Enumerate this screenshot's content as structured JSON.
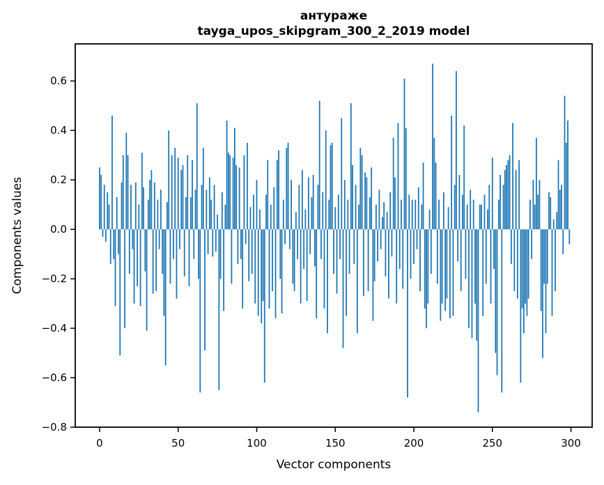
{
  "chart_data": {
    "type": "bar",
    "title_line1": "антураже",
    "title_line2": "tayga_upos_skipgram_300_2_2019 model",
    "xlabel": "Vector components",
    "ylabel": "Components values",
    "x_ticks": [
      0,
      50,
      100,
      150,
      200,
      250,
      300
    ],
    "y_ticks": [
      0.6,
      0.4,
      0.2,
      0.0,
      -0.2,
      -0.4,
      -0.6,
      -0.8
    ],
    "xlim": [
      -15.5,
      313.5
    ],
    "ylim": [
      -0.8,
      0.75
    ],
    "grid": false,
    "legend": "none",
    "bar_color": "#1f77b4",
    "n_components": 300,
    "values": [
      0.25,
      0.22,
      -0.03,
      0.18,
      -0.05,
      0.15,
      0.1,
      -0.14,
      0.46,
      -0.12,
      -0.31,
      0.13,
      -0.1,
      -0.51,
      0.19,
      0.3,
      -0.4,
      0.39,
      0.3,
      -0.18,
      0.18,
      -0.08,
      -0.3,
      0.19,
      -0.23,
      0.1,
      -0.31,
      0.31,
      0.17,
      -0.17,
      -0.41,
      0.12,
      0.2,
      0.24,
      -0.26,
      0.19,
      -0.25,
      0.12,
      -0.08,
      0.16,
      -0.18,
      -0.35,
      -0.55,
      0.11,
      0.4,
      -0.22,
      0.3,
      -0.12,
      0.33,
      -0.28,
      0.29,
      -0.08,
      0.24,
      0.26,
      -0.19,
      0.13,
      0.3,
      -0.23,
      0.13,
      0.28,
      -0.12,
      0.16,
      0.51,
      -0.2,
      -0.66,
      0.18,
      0.33,
      -0.49,
      0.16,
      -0.1,
      0.21,
      0.12,
      -0.11,
      0.18,
      -0.09,
      0.06,
      -0.65,
      -0.2,
      0.15,
      -0.33,
      0.1,
      0.44,
      0.31,
      0.3,
      -0.22,
      0.29,
      0.41,
      0.26,
      -0.14,
      0.25,
      -0.12,
      -0.32,
      0.3,
      -0.06,
      0.35,
      -0.21,
      0.09,
      -0.18,
      0.14,
      -0.3,
      0.2,
      -0.35,
      0.08,
      -0.38,
      -0.29,
      -0.62,
      0.14,
      0.28,
      -0.32,
      0.1,
      -0.25,
      0.17,
      -0.36,
      0.28,
      0.32,
      -0.2,
      -0.34,
      0.12,
      -0.06,
      0.33,
      0.35,
      -0.08,
      0.2,
      -0.22,
      -0.25,
      0.07,
      -0.12,
      0.18,
      -0.3,
      0.24,
      -0.16,
      0.08,
      -0.29,
      0.21,
      -0.1,
      0.13,
      0.22,
      -0.15,
      -0.36,
      0.18,
      0.52,
      -0.12,
      0.15,
      -0.32,
      0.4,
      -0.42,
      0.12,
      0.34,
      0.35,
      -0.18,
      0.09,
      -0.26,
      0.14,
      -0.12,
      0.45,
      -0.48,
      0.2,
      -0.35,
      0.12,
      -0.18,
      0.51,
      0.26,
      -0.14,
      0.18,
      -0.42,
      0.1,
      0.33,
      0.3,
      -0.27,
      0.23,
      0.21,
      -0.25,
      0.13,
      0.25,
      -0.37,
      -0.21,
      0.1,
      -0.13,
      0.16,
      -0.08,
      0.05,
      0.11,
      -0.19,
      0.07,
      -0.28,
      0.15,
      -0.11,
      0.37,
      0.21,
      -0.3,
      0.43,
      -0.16,
      0.12,
      -0.24,
      0.61,
      0.41,
      -0.68,
      0.14,
      -0.2,
      0.12,
      -0.14,
      0.12,
      -0.08,
      0.17,
      -0.25,
      0.1,
      0.27,
      -0.32,
      -0.4,
      -0.3,
      0.08,
      -0.18,
      0.67,
      0.37,
      0.27,
      -0.22,
      0.12,
      -0.37,
      -0.3,
      0.15,
      -0.33,
      -0.28,
      0.09,
      -0.36,
      0.46,
      -0.35,
      0.18,
      0.64,
      -0.13,
      0.22,
      -0.25,
      0.14,
      0.42,
      -0.2,
      0.1,
      -0.4,
      0.16,
      -0.44,
      0.12,
      -0.3,
      -0.45,
      -0.74,
      0.1,
      0.1,
      -0.35,
      0.14,
      -0.22,
      0.08,
      0.18,
      -0.3,
      0.29,
      -0.16,
      -0.5,
      -0.59,
      0.12,
      0.22,
      -0.66,
      0.18,
      0.24,
      0.26,
      0.28,
      0.3,
      -0.14,
      0.43,
      -0.25,
      0.24,
      -0.28,
      0.28,
      -0.62,
      -0.32,
      -0.42,
      -0.3,
      -0.35,
      -0.28,
      0.12,
      -0.12,
      0.2,
      0.1,
      0.37,
      0.14,
      0.2,
      -0.33,
      -0.52,
      -0.22,
      -0.42,
      -0.22,
      0.15,
      0.13,
      -0.35,
      0.04,
      -0.25,
      0.07,
      0.28,
      0.16,
      0.18,
      -0.1,
      0.54,
      0.35,
      0.44,
      -0.06
    ]
  }
}
